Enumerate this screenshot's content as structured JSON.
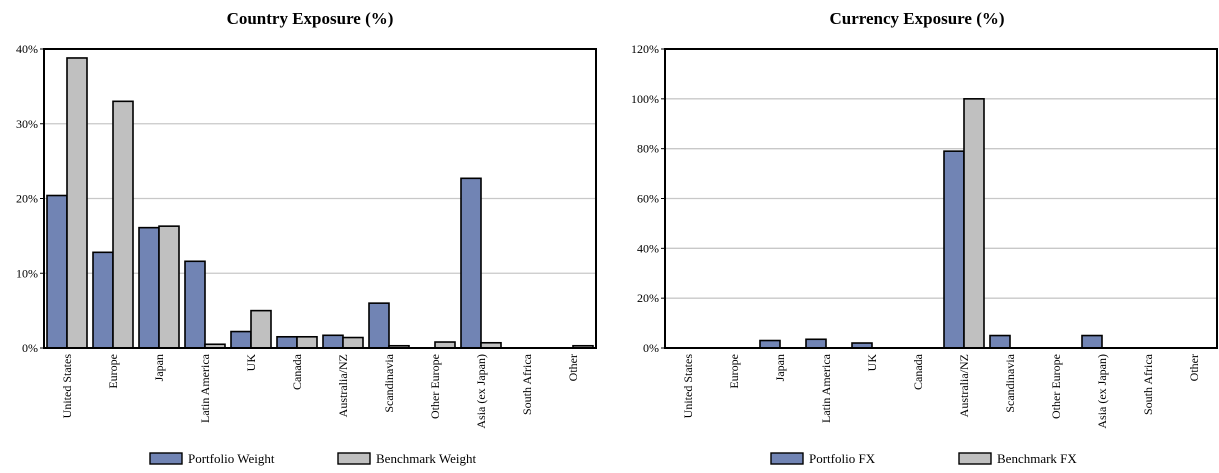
{
  "chart_data": [
    {
      "type": "bar",
      "title": "Country Exposure (%)",
      "xlabel": "",
      "ylabel": "",
      "ylim": [
        0,
        40
      ],
      "yticks": [
        0,
        10,
        20,
        30,
        40
      ],
      "ytick_labels": [
        "0%",
        "10%",
        "20%",
        "30%",
        "40%"
      ],
      "grid": true,
      "legend_position": "bottom",
      "categories": [
        "United States",
        "Europe",
        "Japan",
        "Latin America",
        "UK",
        "Canada",
        "Australia/NZ",
        "Scandinavia",
        "Other Europe",
        "Asia (ex Japan)",
        "South Africa",
        "Other"
      ],
      "series": [
        {
          "name": "Portfolio Weight",
          "color": "#7184b4",
          "values": [
            20.4,
            12.8,
            16.1,
            11.6,
            2.2,
            1.5,
            1.7,
            6.0,
            0.0,
            22.7,
            0.0,
            0.0
          ]
        },
        {
          "name": "Benchmark Weight",
          "color": "#c0c0c0",
          "values": [
            38.8,
            33.0,
            16.3,
            0.5,
            5.0,
            1.5,
            1.4,
            0.3,
            0.8,
            0.7,
            0.0,
            0.3
          ]
        }
      ]
    },
    {
      "type": "bar",
      "title": "Currency Exposure (%)",
      "xlabel": "",
      "ylabel": "",
      "ylim": [
        0,
        120
      ],
      "yticks": [
        0,
        20,
        40,
        60,
        80,
        100,
        120
      ],
      "ytick_labels": [
        "0%",
        "20%",
        "40%",
        "60%",
        "80%",
        "100%",
        "120%"
      ],
      "grid": true,
      "legend_position": "bottom",
      "categories": [
        "United States",
        "Europe",
        "Japan",
        "Latin America",
        "UK",
        "Canada",
        "Australia/NZ",
        "Scandinavia",
        "Other Europe",
        "Asia (ex Japan)",
        "South Africa",
        "Other"
      ],
      "series": [
        {
          "name": "Portfolio FX",
          "color": "#7184b4",
          "values": [
            0,
            0,
            3,
            3.5,
            2,
            0,
            79,
            5,
            0,
            5,
            0,
            0
          ]
        },
        {
          "name": "Benchmark FX",
          "color": "#c0c0c0",
          "values": [
            0,
            0,
            0,
            0,
            0,
            0,
            100,
            0,
            0,
            0,
            0,
            0
          ]
        }
      ]
    }
  ]
}
